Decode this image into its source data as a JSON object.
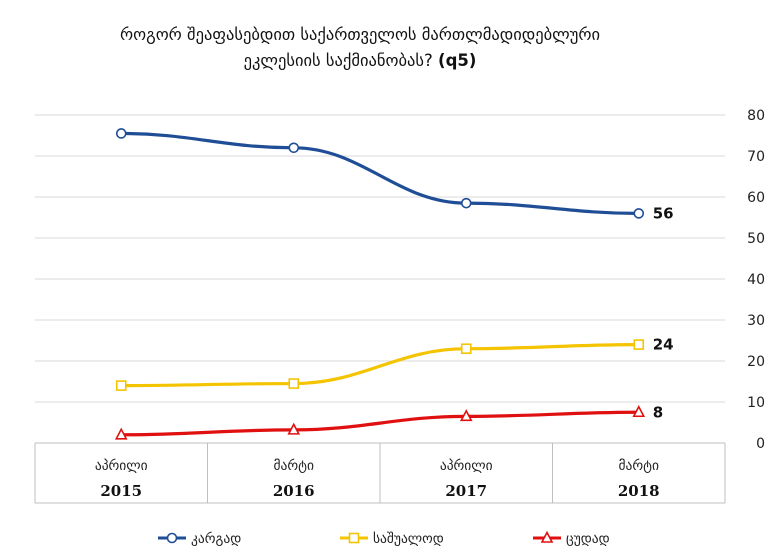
{
  "chart_data": {
    "type": "line",
    "title_line1": "როგორ შეაფასებდით საქართველოს მართლმადიდებლური",
    "title_line2": "ეკლესიის საქმიანობას?",
    "title_code": "(q5)",
    "categories": [
      {
        "month": "აპრილი",
        "year": "2015"
      },
      {
        "month": "მარტი",
        "year": "2016"
      },
      {
        "month": "აპრილი",
        "year": "2017"
      },
      {
        "month": "მარტი",
        "year": "2018"
      }
    ],
    "ylim": [
      0,
      80
    ],
    "yticks": [
      0,
      10,
      20,
      30,
      40,
      50,
      60,
      70,
      80
    ],
    "gridlines": true,
    "legend_position": "bottom",
    "series": [
      {
        "name": "კარგად",
        "values": [
          75.5,
          72,
          58.5,
          56
        ],
        "end_label": "56",
        "color": "#1f4e96",
        "marker": "circle"
      },
      {
        "name": "საშუალოდ",
        "values": [
          14,
          14.5,
          23,
          24
        ],
        "end_label": "24",
        "color": "#f5c400",
        "marker": "square"
      },
      {
        "name": "ცუდად",
        "values": [
          2,
          3.2,
          6.5,
          7.5
        ],
        "end_label": "8",
        "color": "#e01010",
        "marker": "triangle"
      }
    ]
  }
}
